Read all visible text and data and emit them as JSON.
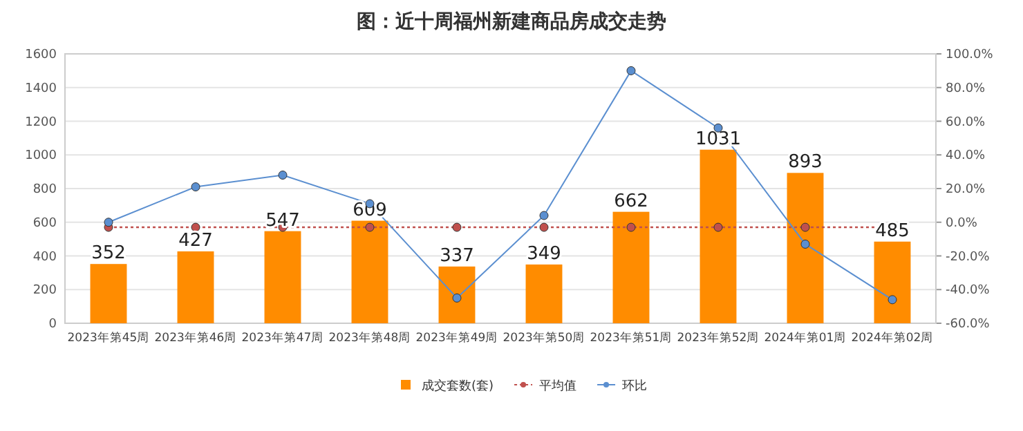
{
  "chart_data": {
    "type": "bar",
    "title": "图：近十周福州新建商品房成交走势",
    "categories": [
      "2023年第45周",
      "2023年第46周",
      "2023年第47周",
      "2023年第48周",
      "2023年第49周",
      "2023年第50周",
      "2023年第51周",
      "2023年第52周",
      "2024年第01周",
      "2024年第02周"
    ],
    "series": [
      {
        "name": "成交套数(套)",
        "color": "#ff8c00",
        "values": [
          352,
          427,
          547,
          609,
          337,
          349,
          662,
          1031,
          893,
          485
        ],
        "value_labels": [
          "352",
          "427",
          "547",
          "609",
          "337",
          "349",
          "662",
          "1031",
          "893",
          "485"
        ]
      },
      {
        "name": "平均值",
        "type": "line",
        "color": "#c0504d",
        "line_style": "dotted",
        "values": [
          570,
          570,
          570,
          570,
          570,
          570,
          570,
          570,
          570,
          570
        ]
      },
      {
        "name": "环比",
        "type": "line",
        "axis": "y2",
        "color": "#5b8fd0",
        "line_style": "solid",
        "values": [
          0,
          21,
          28,
          11,
          -45,
          4,
          90,
          56,
          -13,
          -46
        ]
      }
    ],
    "ylim": [
      0,
      1600
    ],
    "yticks": [
      0,
      200,
      400,
      600,
      800,
      1000,
      1200,
      1400,
      1600
    ],
    "y2lim": [
      -60,
      100
    ],
    "y2ticks": [
      {
        "value": -60,
        "label": "-60.0%"
      },
      {
        "value": -40,
        "label": "-40.0%"
      },
      {
        "value": -20,
        "label": "-20.0%"
      },
      {
        "value": 0,
        "label": "0.0%"
      },
      {
        "value": 20,
        "label": "20.0%"
      },
      {
        "value": 40,
        "label": "40.0%"
      },
      {
        "value": 60,
        "label": "60.0%"
      },
      {
        "value": 80,
        "label": "80.0%"
      },
      {
        "value": 100,
        "label": "100.0%"
      }
    ],
    "grid": "y",
    "legend": "bottom",
    "marker": "circle"
  }
}
